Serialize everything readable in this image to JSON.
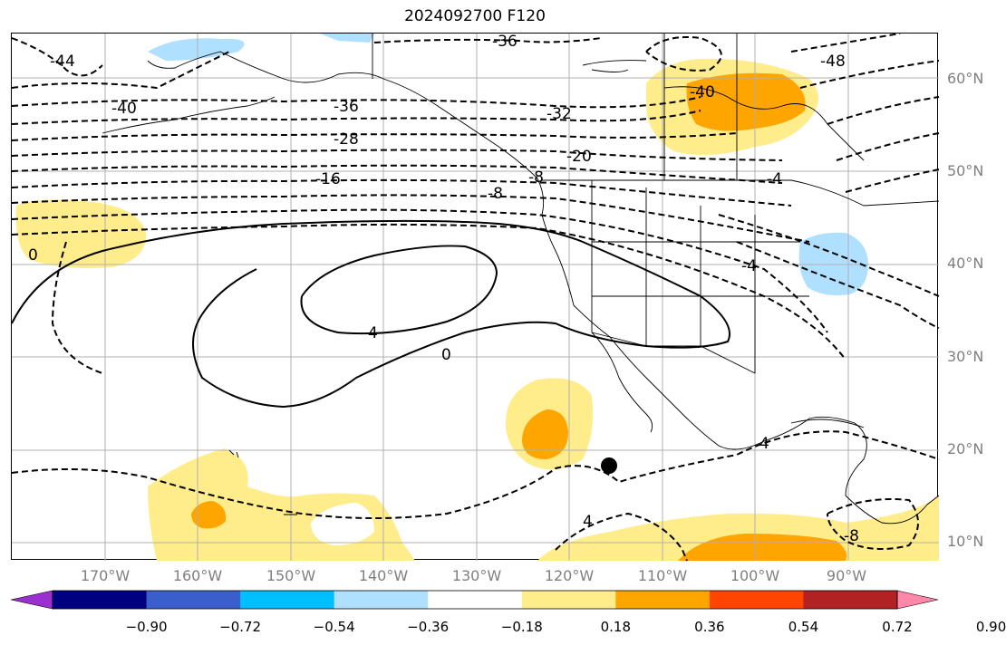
{
  "title": "2024092700 F120",
  "lat_labels": [
    "60°N",
    "50°N",
    "40°N",
    "30°N",
    "20°N",
    "10°N"
  ],
  "lon_labels": [
    "170°W",
    "160°W",
    "150°W",
    "140°W",
    "130°W",
    "120°W",
    "110°W",
    "100°W",
    "90°W"
  ],
  "contour_labels": [
    "-44",
    "-40",
    "-36",
    "-36",
    "-32",
    "-28",
    "-20",
    "-16",
    "-8",
    "-8",
    "0",
    "4",
    "4",
    "4",
    "-4",
    "-40",
    "-48",
    "-8",
    "-4",
    "0"
  ],
  "colorbar": {
    "ticks": [
      "−0.90",
      "−0.72",
      "−0.54",
      "−0.36",
      "−0.18",
      "0.18",
      "0.36",
      "0.54",
      "0.72",
      "0.90"
    ],
    "colors": [
      "#9b30d0",
      "#000080",
      "#3a5fcd",
      "#00bfff",
      "#b0e0ff",
      "#ffffff",
      "#ffec8b",
      "#ffa500",
      "#ff4500",
      "#b22222",
      "#ff88aa"
    ]
  },
  "marker": "storm-center"
}
